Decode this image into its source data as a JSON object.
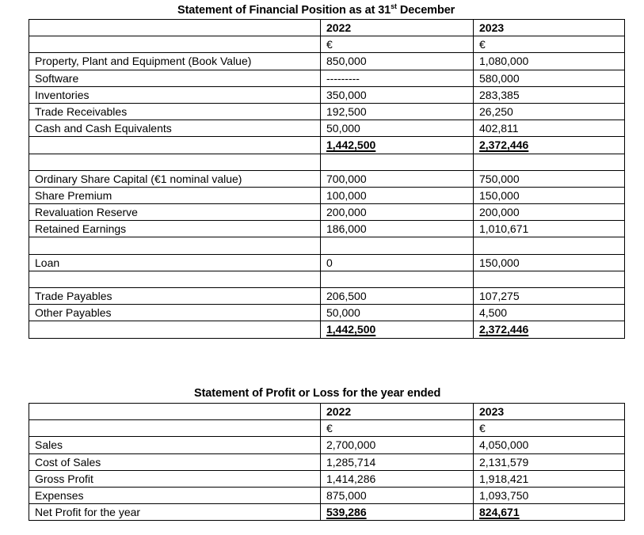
{
  "financial_position": {
    "title_prefix": "Statement of Financial Position as at 31",
    "title_sup": "st",
    "title_suffix": " December",
    "columns": [
      "",
      "2022",
      "2023"
    ],
    "currency_row": [
      "",
      "€",
      "€"
    ],
    "rows": [
      {
        "label": "Property, Plant and Equipment (Book Value)",
        "y2022": "850,000",
        "y2023": "1,080,000"
      },
      {
        "label": "Software",
        "y2022": "---------",
        "y2023": "580,000"
      },
      {
        "label": "Inventories",
        "y2022": "350,000",
        "y2023": "283,385"
      },
      {
        "label": "Trade Receivables",
        "y2022": "192,500",
        "y2023": "26,250"
      },
      {
        "label": "Cash and Cash Equivalents",
        "y2022": "50,000",
        "y2023": "402,811"
      },
      {
        "label": "",
        "y2022": "1,442,500",
        "y2023": "2,372,446",
        "total": true
      },
      {
        "label": "",
        "y2022": "",
        "y2023": ""
      },
      {
        "label": "Ordinary Share Capital (€1 nominal value)",
        "y2022": "700,000",
        "y2023": "750,000"
      },
      {
        "label": "Share Premium",
        "y2022": "100,000",
        "y2023": "150,000"
      },
      {
        "label": "Revaluation Reserve",
        "y2022": "200,000",
        "y2023": "200,000"
      },
      {
        "label": "Retained Earnings",
        "y2022": "186,000",
        "y2023": "1,010,671"
      },
      {
        "label": "",
        "y2022": "",
        "y2023": ""
      },
      {
        "label": "Loan",
        "y2022": "0",
        "y2023": "150,000"
      },
      {
        "label": "",
        "y2022": "",
        "y2023": ""
      },
      {
        "label": "Trade Payables",
        "y2022": "206,500",
        "y2023": "107,275"
      },
      {
        "label": "Other Payables",
        "y2022": "50,000",
        "y2023": "4,500"
      },
      {
        "label": "",
        "y2022": "1,442,500",
        "y2023": "2,372,446",
        "total": true
      }
    ]
  },
  "profit_or_loss": {
    "title": "Statement of Profit or Loss for the year ended",
    "columns": [
      "",
      "2022",
      "2023"
    ],
    "currency_row": [
      "",
      "€",
      "€"
    ],
    "rows": [
      {
        "label": "Sales",
        "y2022": "2,700,000",
        "y2023": "4,050,000"
      },
      {
        "label": "Cost of Sales",
        "y2022": "1,285,714",
        "y2023": "2,131,579"
      },
      {
        "label": "Gross Profit",
        "y2022": "1,414,286",
        "y2023": "1,918,421"
      },
      {
        "label": "Expenses",
        "y2022": "875,000",
        "y2023": "1,093,750"
      },
      {
        "label": "Net Profit for the year",
        "y2022": "539,286",
        "y2023": "824,671",
        "total": true
      }
    ]
  }
}
